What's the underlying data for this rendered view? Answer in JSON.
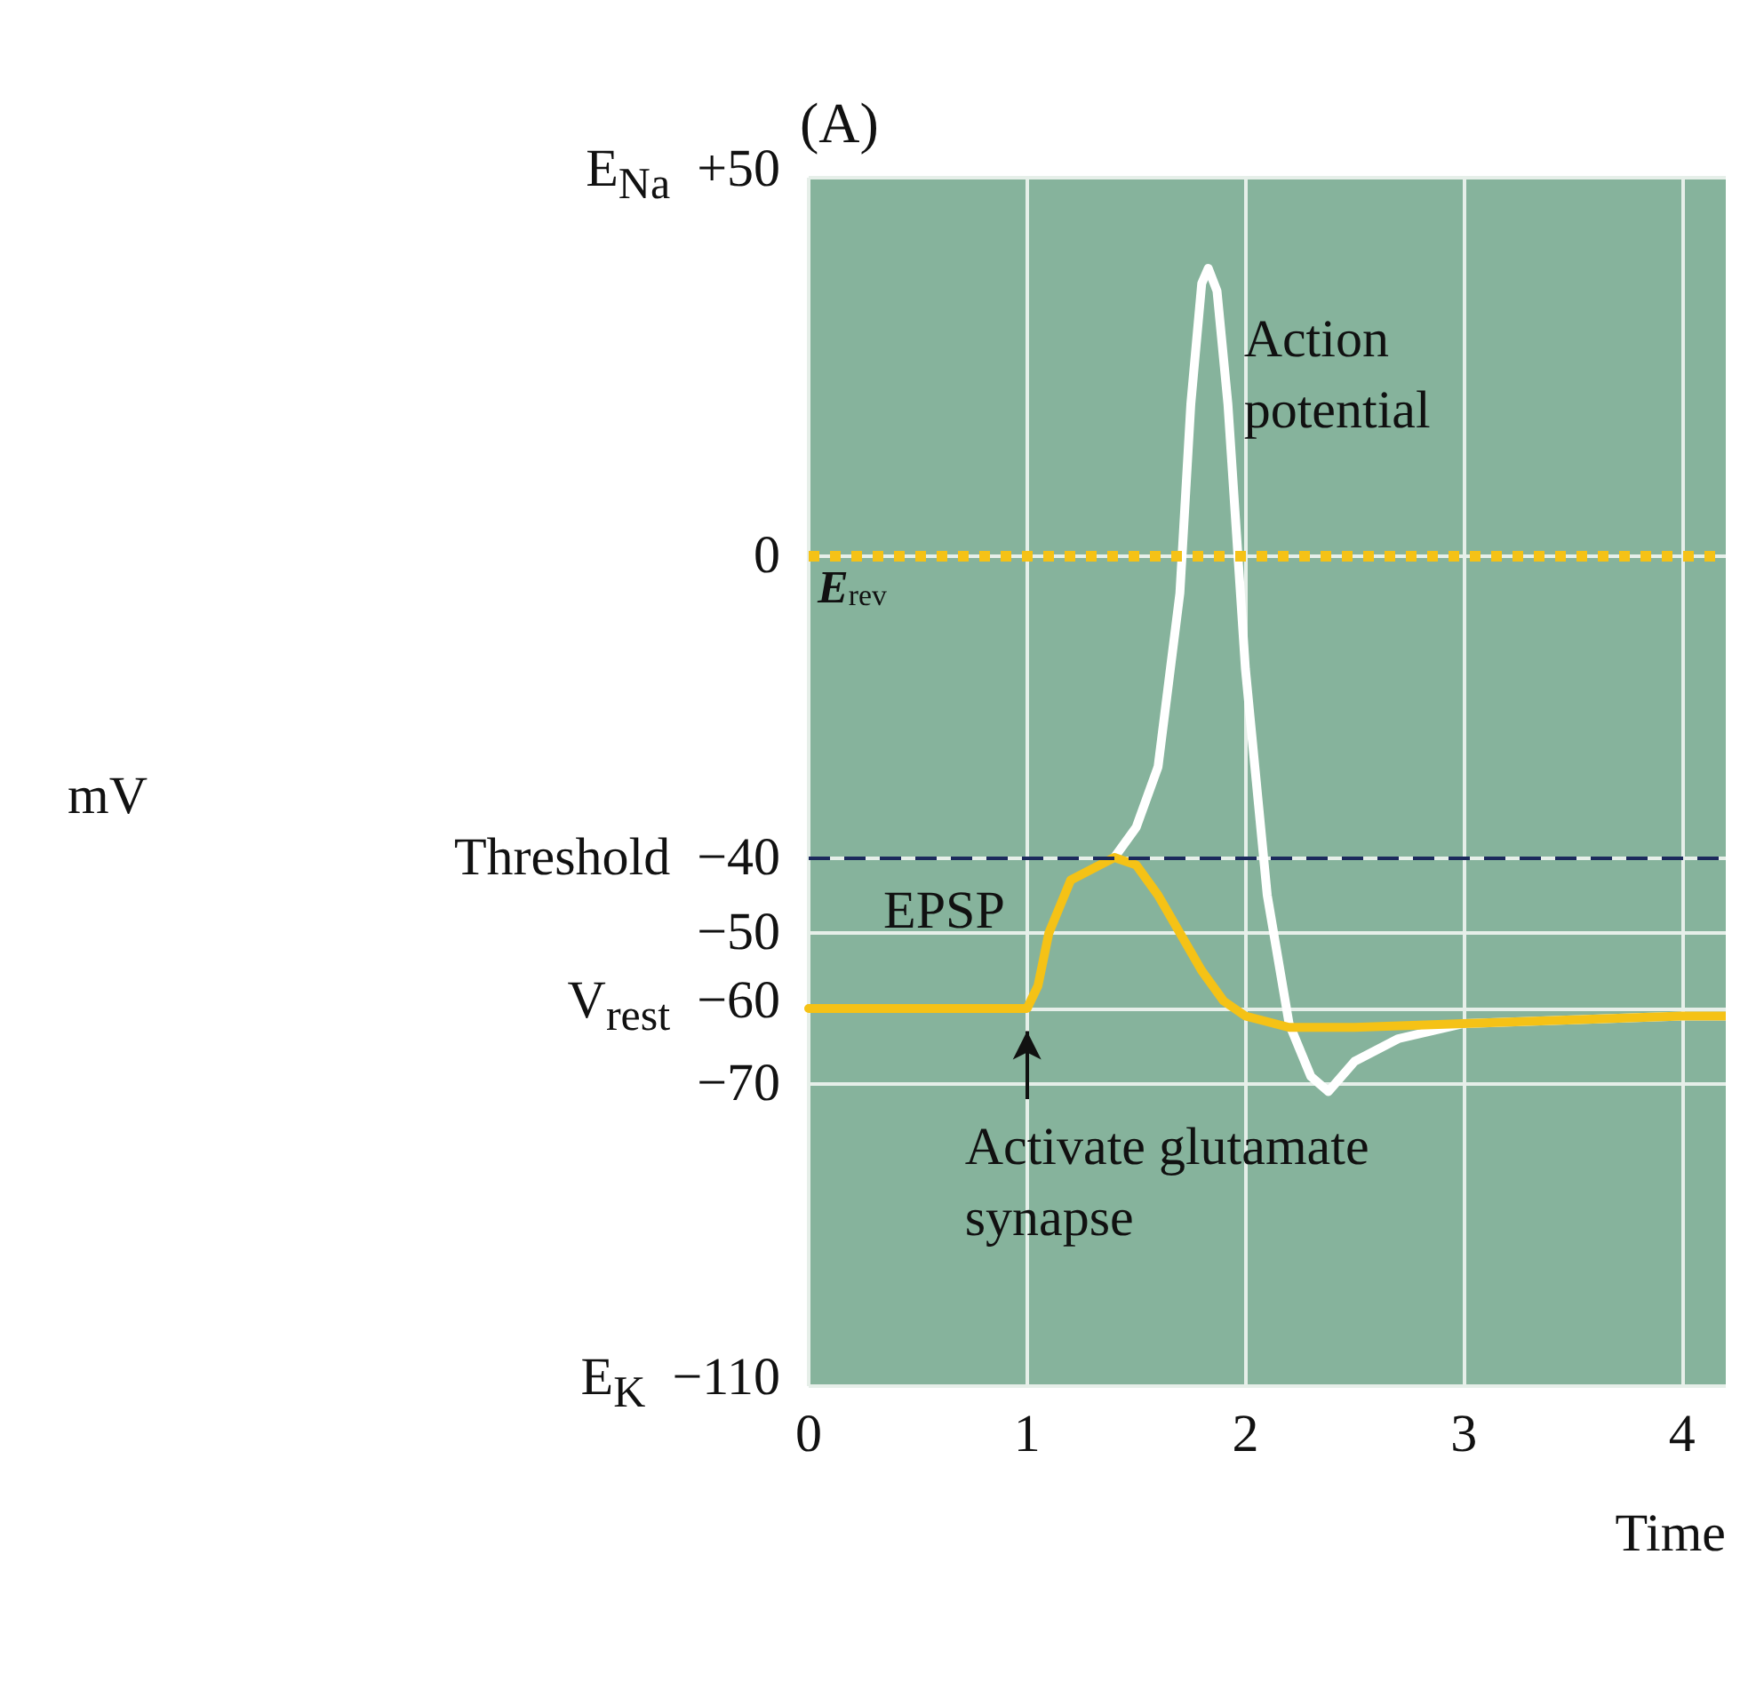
{
  "chart_data": {
    "type": "line",
    "title": "(A)",
    "xlabel": "Time",
    "x": [
      0,
      0.5,
      1,
      1.05,
      1.1,
      1.2,
      1.3,
      1.4,
      1.5,
      1.6,
      1.7,
      1.8,
      1.9,
      2.0,
      2.2,
      2.5,
      3.0,
      3.5,
      4.0,
      4.2
    ],
    "series": [
      {
        "name": "Action potential",
        "color": "#ffffff",
        "x": [
          1.4,
          1.5,
          1.6,
          1.7,
          1.75,
          1.8,
          1.83,
          1.87,
          1.92,
          2.0,
          2.1,
          2.2,
          2.3,
          2.38,
          2.5,
          2.7,
          3.0,
          3.5,
          4.0,
          4.2
        ],
        "values": [
          -40,
          -36,
          -28,
          -5,
          20,
          36,
          38,
          35,
          20,
          -15,
          -45,
          -62,
          -69,
          -71,
          -67,
          -64,
          -62,
          -61.5,
          -61,
          -61
        ]
      },
      {
        "name": "EPSP",
        "color": "#f5c216",
        "values": [
          -60,
          -60,
          -60,
          -57,
          -50,
          -43,
          -41.5,
          -40,
          -41,
          -45,
          -50,
          -55,
          -59,
          -61,
          -62.5,
          -62.5,
          -62,
          -61.5,
          -61,
          -61
        ]
      }
    ],
    "xlim": [
      0,
      4.2
    ],
    "xticks": [
      0,
      1,
      2,
      3,
      4
    ],
    "ylim": [
      -110,
      50
    ],
    "yticks": [
      {
        "value": 50,
        "label": "E$_{Na}$  +50"
      },
      0,
      {
        "value": -40,
        "label": "Threshold  −40"
      },
      {
        "value": -50,
        "label": "−50"
      },
      {
        "value": -60,
        "label": "V$_{rest}$  −60"
      },
      {
        "value": -70,
        "label": "−70"
      },
      {
        "value": -110,
        "label": "E$_{K}$  −110"
      }
    ],
    "grid": true,
    "ref_lines": [
      {
        "axis": "y",
        "value": 0,
        "label": "E$_{rev}$",
        "color": "#f5c216",
        "line_style": "dotted"
      },
      {
        "axis": "y",
        "value": -40,
        "color": "#1c2a5c",
        "line_style": "dashed"
      }
    ],
    "annotations": [
      "mV",
      {
        "text": "Activate glutamate synapse",
        "x": 1,
        "y": -60
      }
    ]
  }
}
